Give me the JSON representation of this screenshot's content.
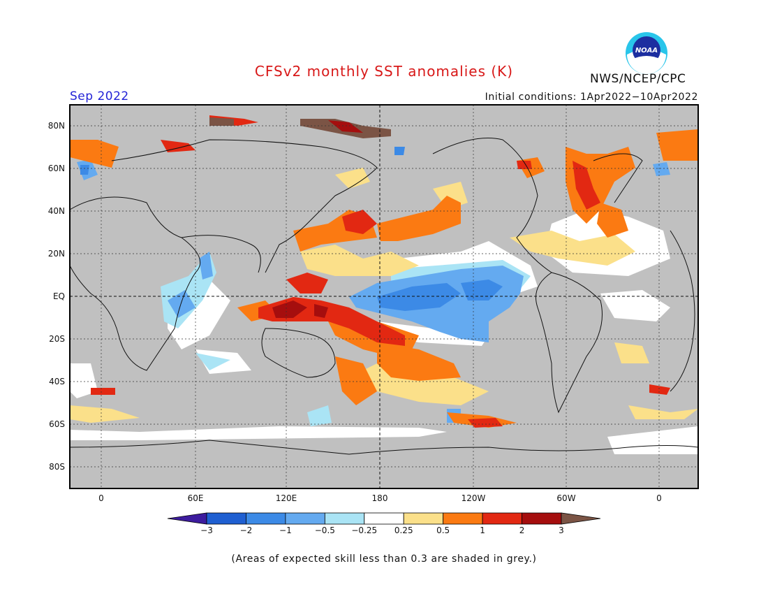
{
  "header": {
    "title": "CFSv2 monthly SST anomalies (K)",
    "agency": "NWS/NCEP/CPC",
    "period": "Sep 2022",
    "initial_conditions": "Initial conditions: 1Apr2022−10Apr2022",
    "logo_text": "NOAA"
  },
  "map": {
    "lat_labels": [
      "80N",
      "60N",
      "40N",
      "20N",
      "EQ",
      "20S",
      "40S",
      "60S",
      "80S"
    ],
    "lon_labels": [
      "0",
      "60E",
      "120E",
      "180",
      "120W",
      "60W",
      "0"
    ],
    "land_color": "#c0c0c0",
    "ocean_color": "#ffffff"
  },
  "colorbar": {
    "ticks": [
      "−3",
      "−2",
      "−1",
      "−0.5",
      "−0.25",
      "0.25",
      "0.5",
      "1",
      "2",
      "3"
    ],
    "colors": [
      "#3d1c9e",
      "#1f5fd1",
      "#3c8ae6",
      "#64aaf0",
      "#aae4f5",
      "#ffffff",
      "#fbe08a",
      "#fb7a12",
      "#e22812",
      "#a50e0e",
      "#7b5445"
    ]
  },
  "footnote": "(Areas of expected skill less than 0.3 are shaded in grey.)"
}
